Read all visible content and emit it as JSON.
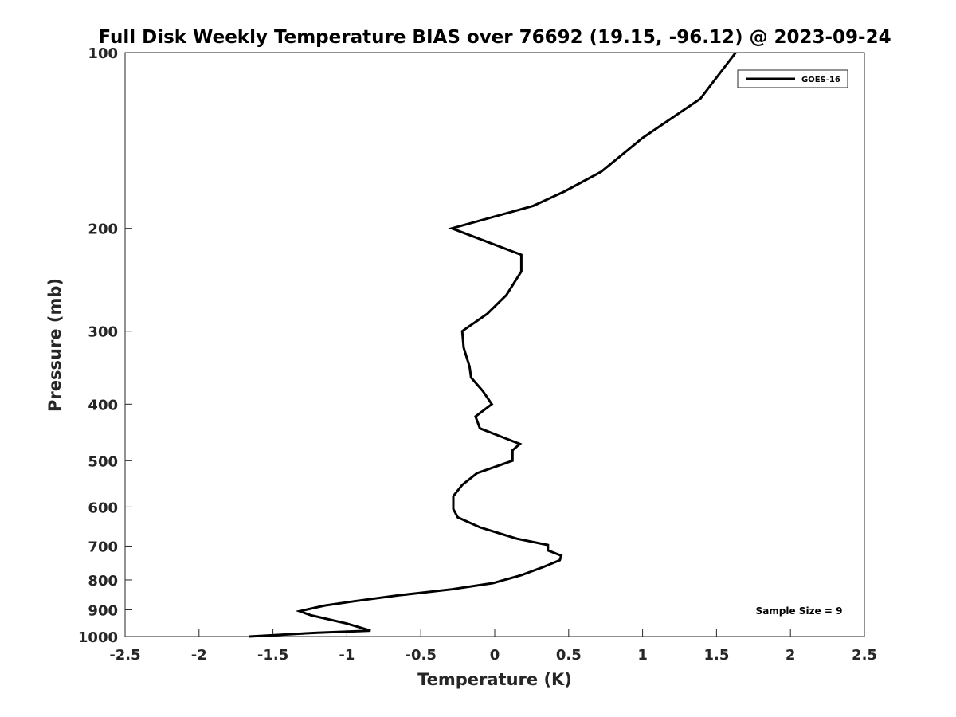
{
  "chart_data": {
    "type": "line",
    "title": "Full Disk Weekly Temperature BIAS over 76692 (19.15, -96.12) @ 2023-09-24",
    "xlabel": "Temperature (K)",
    "ylabel": "Pressure (mb)",
    "xlim": [
      -2.5,
      2.5
    ],
    "ylim": [
      100,
      1000
    ],
    "y_scale": "log",
    "y_reversed": true,
    "grid": false,
    "legend_position": "top-right",
    "x_ticks": [
      -2.5,
      -2,
      -1.5,
      -1,
      -0.5,
      0,
      0.5,
      1,
      1.5,
      2,
      2.5
    ],
    "x_tick_labels": [
      "-2.5",
      "-2",
      "-1.5",
      "-1",
      "-0.5",
      "0",
      "0.5",
      "1",
      "1.5",
      "2",
      "2.5"
    ],
    "y_ticks": [
      100,
      200,
      300,
      400,
      500,
      600,
      700,
      800,
      900,
      1000
    ],
    "y_tick_labels": [
      "100",
      "200",
      "300",
      "400",
      "500",
      "600",
      "700",
      "800",
      "900",
      "1000"
    ],
    "series": [
      {
        "name": "GOES-16",
        "color": "#000000",
        "points": [
          {
            "x": 1.63,
            "y": 100
          },
          {
            "x": 1.39,
            "y": 120
          },
          {
            "x": 1.0,
            "y": 140
          },
          {
            "x": 0.72,
            "y": 160
          },
          {
            "x": 0.47,
            "y": 173
          },
          {
            "x": 0.26,
            "y": 183
          },
          {
            "x": -0.29,
            "y": 200
          },
          {
            "x": 0.18,
            "y": 222
          },
          {
            "x": 0.18,
            "y": 237
          },
          {
            "x": 0.08,
            "y": 260
          },
          {
            "x": -0.05,
            "y": 280
          },
          {
            "x": -0.22,
            "y": 300
          },
          {
            "x": -0.21,
            "y": 320
          },
          {
            "x": -0.17,
            "y": 345
          },
          {
            "x": -0.16,
            "y": 360
          },
          {
            "x": -0.08,
            "y": 380
          },
          {
            "x": -0.02,
            "y": 400
          },
          {
            "x": -0.13,
            "y": 420
          },
          {
            "x": -0.1,
            "y": 440
          },
          {
            "x": 0.17,
            "y": 468
          },
          {
            "x": 0.12,
            "y": 480
          },
          {
            "x": 0.12,
            "y": 500
          },
          {
            "x": -0.12,
            "y": 525
          },
          {
            "x": -0.22,
            "y": 550
          },
          {
            "x": -0.28,
            "y": 575
          },
          {
            "x": -0.28,
            "y": 605
          },
          {
            "x": -0.25,
            "y": 625
          },
          {
            "x": -0.1,
            "y": 650
          },
          {
            "x": 0.15,
            "y": 680
          },
          {
            "x": 0.36,
            "y": 697
          },
          {
            "x": 0.36,
            "y": 712
          },
          {
            "x": 0.45,
            "y": 727
          },
          {
            "x": 0.44,
            "y": 740
          },
          {
            "x": 0.33,
            "y": 760
          },
          {
            "x": 0.18,
            "y": 785
          },
          {
            "x": -0.01,
            "y": 810
          },
          {
            "x": -0.29,
            "y": 830
          },
          {
            "x": -0.65,
            "y": 850
          },
          {
            "x": -0.95,
            "y": 870
          },
          {
            "x": -1.15,
            "y": 885
          },
          {
            "x": -1.32,
            "y": 905
          },
          {
            "x": -1.24,
            "y": 920
          },
          {
            "x": -1.0,
            "y": 950
          },
          {
            "x": -0.84,
            "y": 977
          },
          {
            "x": -1.2,
            "y": 985
          },
          {
            "x": -1.66,
            "y": 1000
          }
        ]
      }
    ],
    "annotations": [
      {
        "text": "Sample Size = 9",
        "position": "bottom-right"
      }
    ]
  }
}
